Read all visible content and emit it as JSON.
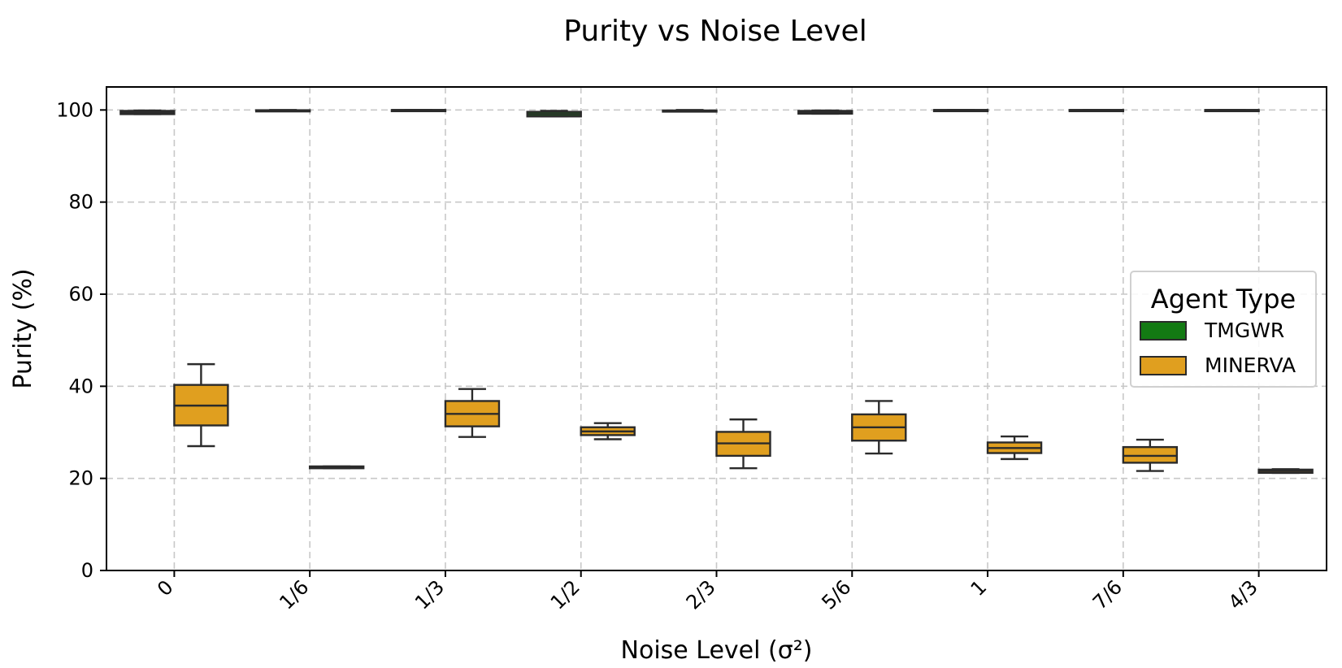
{
  "chart_data": {
    "type": "box",
    "title": "Purity vs Noise Level",
    "xlabel": "Noise Level (σ²)",
    "ylabel": "Purity (%)",
    "ylim": [
      0,
      105
    ],
    "yticks": [
      0,
      20,
      40,
      60,
      80,
      100
    ],
    "grid": true,
    "legend": {
      "title": "Agent Type",
      "placement": "center-right"
    },
    "categories": [
      "0",
      "1/6",
      "1/3",
      "1/2",
      "2/3",
      "5/6",
      "1",
      "7/6",
      "4/3"
    ],
    "series": [
      {
        "name": "TMGWR",
        "color": "#137a13",
        "boxes": [
          {
            "whislo": 99.1,
            "q1": 99.1,
            "med": 99.4,
            "q3": 99.8,
            "whishi": 99.9
          },
          {
            "whislo": 99.8,
            "q1": 99.8,
            "med": 99.9,
            "q3": 99.95,
            "whishi": 100
          },
          {
            "whislo": 99.9,
            "q1": 99.9,
            "med": 100,
            "q3": 100,
            "whishi": 100
          },
          {
            "whislo": 98.6,
            "q1": 98.6,
            "med": 99.1,
            "q3": 99.6,
            "whishi": 99.8
          },
          {
            "whislo": 99.7,
            "q1": 99.7,
            "med": 99.8,
            "q3": 99.9,
            "whishi": 100
          },
          {
            "whislo": 99.2,
            "q1": 99.2,
            "med": 99.5,
            "q3": 99.8,
            "whishi": 99.9
          },
          {
            "whislo": 99.9,
            "q1": 99.9,
            "med": 100,
            "q3": 100,
            "whishi": 100
          },
          {
            "whislo": 99.9,
            "q1": 99.9,
            "med": 100,
            "q3": 100,
            "whishi": 100
          },
          {
            "whislo": 99.9,
            "q1": 99.9,
            "med": 100,
            "q3": 100,
            "whishi": 100
          }
        ]
      },
      {
        "name": "MINERVA",
        "color": "#e09f1f",
        "boxes": [
          {
            "whislo": 27.0,
            "q1": 31.5,
            "med": 35.8,
            "q3": 40.3,
            "whishi": 44.8
          },
          {
            "whislo": 22.2,
            "q1": 22.2,
            "med": 22.4,
            "q3": 22.6,
            "whishi": 22.6
          },
          {
            "whislo": 29.0,
            "q1": 31.3,
            "med": 34.0,
            "q3": 36.8,
            "whishi": 39.4
          },
          {
            "whislo": 28.5,
            "q1": 29.4,
            "med": 30.2,
            "q3": 31.1,
            "whishi": 32.0
          },
          {
            "whislo": 22.2,
            "q1": 24.9,
            "med": 27.6,
            "q3": 30.1,
            "whishi": 32.8
          },
          {
            "whislo": 25.4,
            "q1": 28.2,
            "med": 31.1,
            "q3": 33.9,
            "whishi": 36.8
          },
          {
            "whislo": 24.2,
            "q1": 25.5,
            "med": 26.6,
            "q3": 27.8,
            "whishi": 29.1
          },
          {
            "whislo": 21.6,
            "q1": 23.4,
            "med": 24.9,
            "q3": 26.8,
            "whishi": 28.4
          },
          {
            "whislo": 21.2,
            "q1": 21.2,
            "med": 21.6,
            "q3": 21.9,
            "whishi": 22.0
          }
        ]
      }
    ]
  }
}
